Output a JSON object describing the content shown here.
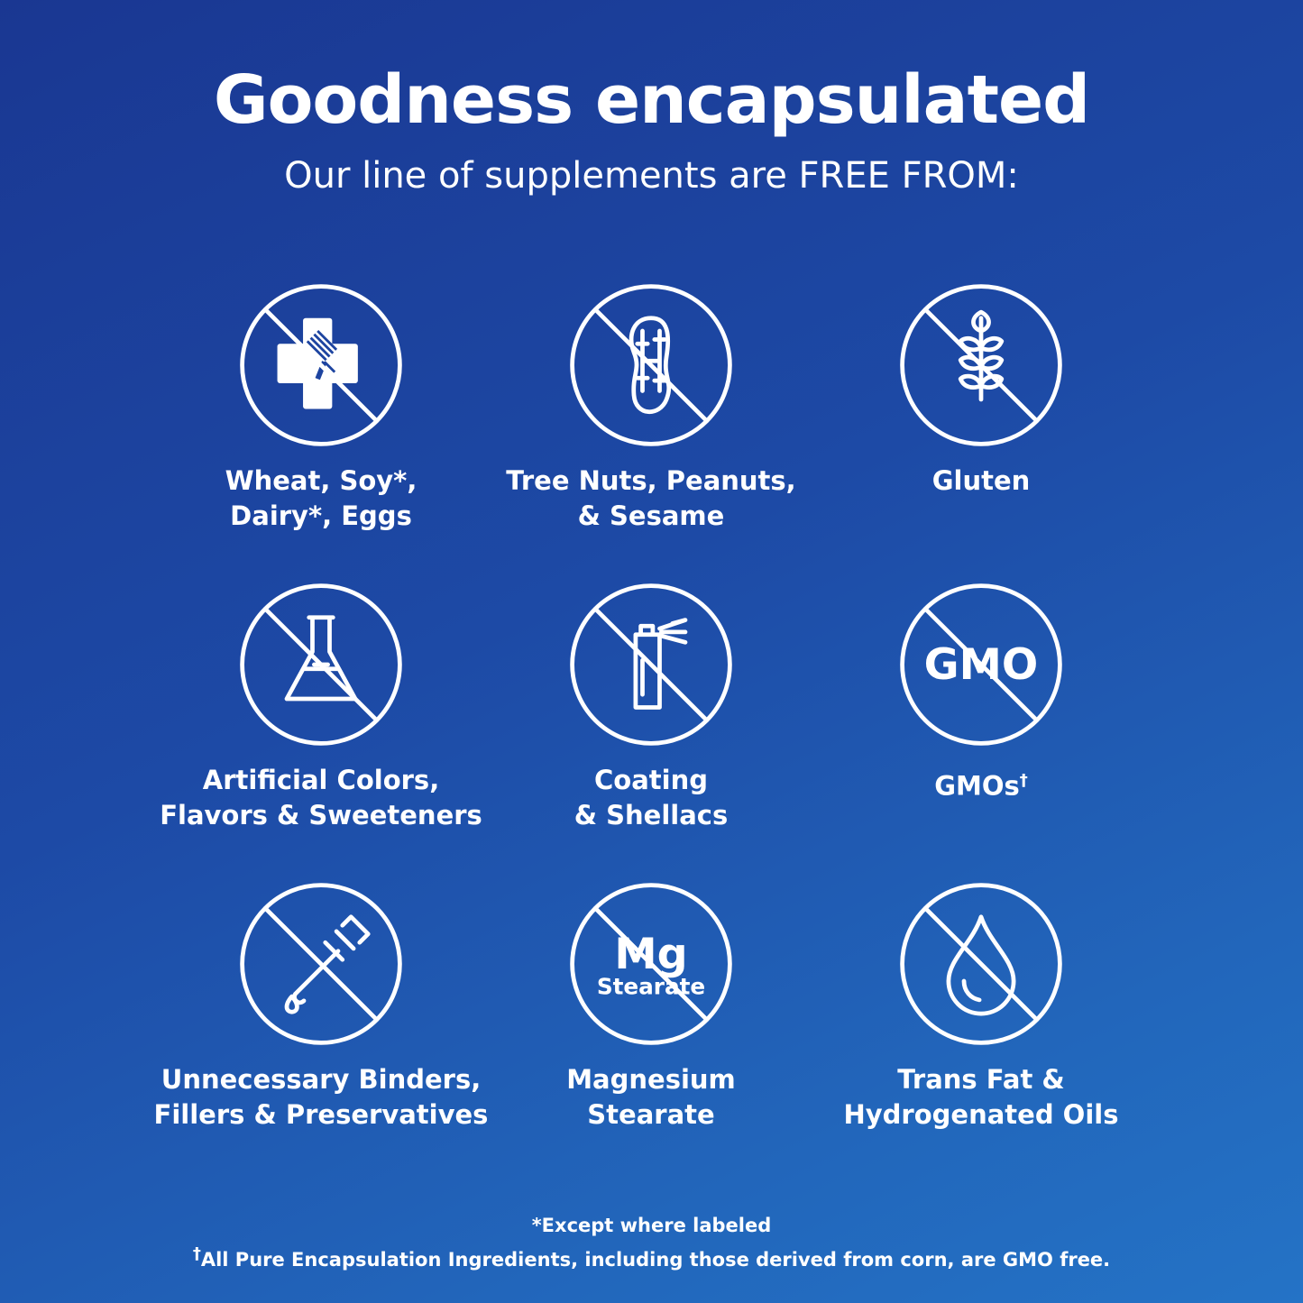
{
  "header": {
    "title": "Goodness encapsulated",
    "subtitle": "Our line of supplements are FREE FROM:"
  },
  "items": [
    {
      "label": "Wheat, Soy*,\nDairy*, Eggs",
      "icon": "allergen-cross-fork-icon"
    },
    {
      "label": "Tree Nuts, Peanuts,\n& Sesame",
      "icon": "peanut-icon"
    },
    {
      "label": "Gluten",
      "icon": "wheat-icon"
    },
    {
      "label": "Artificial Colors,\nFlavors & Sweeteners",
      "icon": "flask-icon"
    },
    {
      "label": "Coating\n& Shellacs",
      "icon": "spray-can-icon"
    },
    {
      "label": "GMOs",
      "sup": "†",
      "icon": "gmo-icon",
      "icon_text": "GMO"
    },
    {
      "label": "Unnecessary Binders,\nFillers & Preservatives",
      "icon": "dropper-icon"
    },
    {
      "label": "Magnesium\nStearate",
      "icon": "mg-stearate-icon",
      "icon_text": "Mg",
      "icon_subtext": "Stearate"
    },
    {
      "label": "Trans Fat &\nHydrogenated Oils",
      "icon": "oil-drop-icon"
    }
  ],
  "footnotes": {
    "note1": "*Except where labeled",
    "note2_mark": "†",
    "note2": "All Pure Encapsulation Ingredients, including those derived from corn, are GMO free."
  },
  "colors": {
    "bg_top": "#1a3792",
    "bg_bottom": "#2473c6",
    "fg": "#ffffff"
  }
}
